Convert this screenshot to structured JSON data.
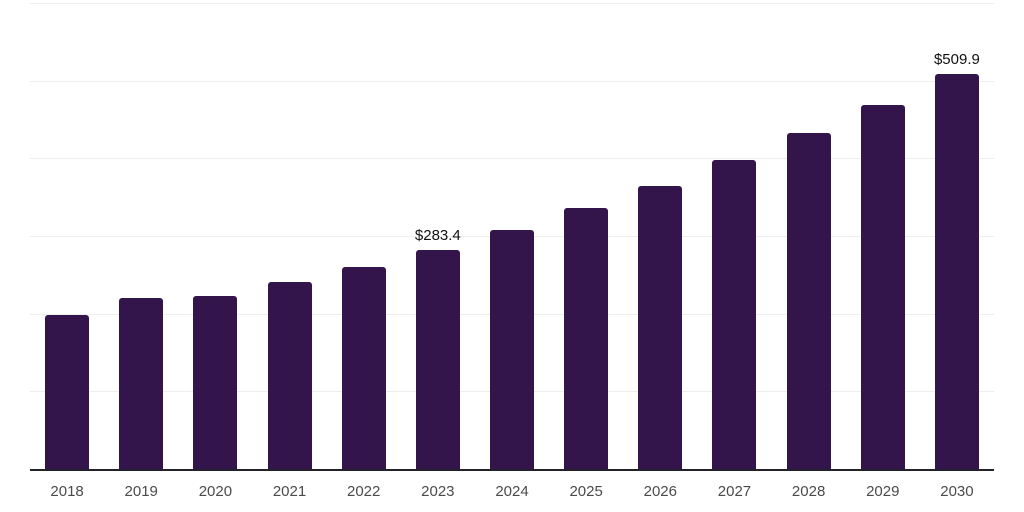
{
  "chart": {
    "background": "#ffffff",
    "bar_color": "#33154b",
    "axis_line_color": "#222228",
    "gridline_color": "#eeeeee",
    "tick_label_color": "#4b4b4b",
    "data_label_color": "#111111"
  },
  "chart_data": {
    "type": "bar",
    "title": "",
    "xlabel": "",
    "ylabel": "",
    "legend": "none",
    "grid": "horizontal",
    "categories": [
      "2018",
      "2019",
      "2020",
      "2021",
      "2022",
      "2023",
      "2024",
      "2025",
      "2026",
      "2027",
      "2028",
      "2029",
      "2030"
    ],
    "values": [
      199.8,
      222.0,
      224.6,
      241.9,
      262.0,
      283.4,
      309.5,
      337.2,
      365.2,
      398.6,
      433.4,
      470.3,
      509.9
    ],
    "data_labels": [
      "",
      "",
      "",
      "",
      "",
      "$283.4",
      "",
      "",
      "",
      "",
      "",
      "",
      "$509.9"
    ],
    "ylim": [
      0,
      600
    ],
    "y_gridline_step": 100,
    "y_tick_labels_shown": false
  }
}
